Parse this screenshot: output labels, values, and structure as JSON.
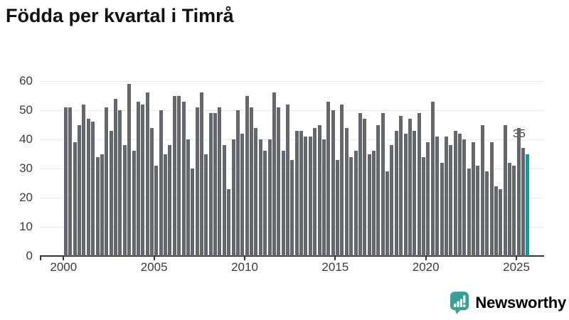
{
  "title": "Födda per kvartal i Timrå",
  "chart_data": {
    "type": "bar",
    "title": "Födda per kvartal i Timrå",
    "categories": [
      "2000 Q1",
      "2000 Q2",
      "2000 Q3",
      "2000 Q4",
      "2001 Q1",
      "2001 Q2",
      "2001 Q3",
      "2001 Q4",
      "2002 Q1",
      "2002 Q2",
      "2002 Q3",
      "2002 Q4",
      "2003 Q1",
      "2003 Q2",
      "2003 Q3",
      "2003 Q4",
      "2004 Q1",
      "2004 Q2",
      "2004 Q3",
      "2004 Q4",
      "2005 Q1",
      "2005 Q2",
      "2005 Q3",
      "2005 Q4",
      "2006 Q1",
      "2006 Q2",
      "2006 Q3",
      "2006 Q4",
      "2007 Q1",
      "2007 Q2",
      "2007 Q3",
      "2007 Q4",
      "2008 Q1",
      "2008 Q2",
      "2008 Q3",
      "2008 Q4",
      "2009 Q1",
      "2009 Q2",
      "2009 Q3",
      "2009 Q4",
      "2010 Q1",
      "2010 Q2",
      "2010 Q3",
      "2010 Q4",
      "2011 Q1",
      "2011 Q2",
      "2011 Q3",
      "2011 Q4",
      "2012 Q1",
      "2012 Q2",
      "2012 Q3",
      "2012 Q4",
      "2013 Q1",
      "2013 Q2",
      "2013 Q3",
      "2013 Q4",
      "2014 Q1",
      "2014 Q2",
      "2014 Q3",
      "2014 Q4",
      "2015 Q1",
      "2015 Q2",
      "2015 Q3",
      "2015 Q4",
      "2016 Q1",
      "2016 Q2",
      "2016 Q3",
      "2016 Q4",
      "2017 Q1",
      "2017 Q2",
      "2017 Q3",
      "2017 Q4",
      "2018 Q1",
      "2018 Q2",
      "2018 Q3",
      "2018 Q4",
      "2019 Q1",
      "2019 Q2",
      "2019 Q3",
      "2019 Q4",
      "2020 Q1",
      "2020 Q2",
      "2020 Q3",
      "2020 Q4",
      "2021 Q1",
      "2021 Q2",
      "2021 Q3",
      "2021 Q4",
      "2022 Q1",
      "2022 Q2",
      "2022 Q3",
      "2022 Q4",
      "2023 Q1",
      "2023 Q2",
      "2023 Q3",
      "2023 Q4",
      "2024 Q1",
      "2024 Q2",
      "2024 Q3",
      "2024 Q4",
      "2025 Q1",
      "2025 Q2",
      "2025 Q3"
    ],
    "values": [
      51,
      51,
      39,
      45,
      52,
      47,
      46,
      34,
      35,
      51,
      43,
      54,
      50,
      38,
      59,
      36,
      53,
      52,
      56,
      44,
      31,
      50,
      35,
      38,
      55,
      55,
      53,
      40,
      30,
      51,
      56,
      35,
      49,
      49,
      51,
      38,
      23,
      40,
      50,
      42,
      55,
      51,
      44,
      40,
      36,
      40,
      56,
      51,
      36,
      52,
      33,
      43,
      43,
      41,
      41,
      44,
      45,
      40,
      53,
      50,
      33,
      52,
      44,
      34,
      36,
      49,
      47,
      35,
      36,
      45,
      49,
      29,
      38,
      43,
      48,
      42,
      47,
      43,
      49,
      34,
      39,
      53,
      41,
      32,
      41,
      38,
      43,
      42,
      40,
      30,
      39,
      31,
      45,
      29,
      39,
      24,
      23,
      45,
      32,
      31,
      44,
      37,
      35
    ],
    "highlight_index": 102,
    "end_label": "35",
    "yticks": [
      0,
      10,
      20,
      30,
      40,
      50,
      60
    ],
    "ylim": [
      0,
      60
    ],
    "x_tick_years": [
      2000,
      2005,
      2010,
      2015,
      2020,
      2025
    ],
    "x_tick_labels": [
      "2000",
      "2005",
      "2010",
      "2015",
      "2020",
      "2025"
    ],
    "grid": "horizontal",
    "legend": "none",
    "bar_color": "#64676b",
    "highlight_color": "#00a0a8",
    "grid_color": "#e9e9e9",
    "axis_color": "#333333",
    "tick_label_color": "#3c3c3c"
  },
  "branding": {
    "name": "Newsworthy",
    "color": "#3aa093",
    "icon": "newsworthy-speech-bubble-bar-chart-icon"
  }
}
